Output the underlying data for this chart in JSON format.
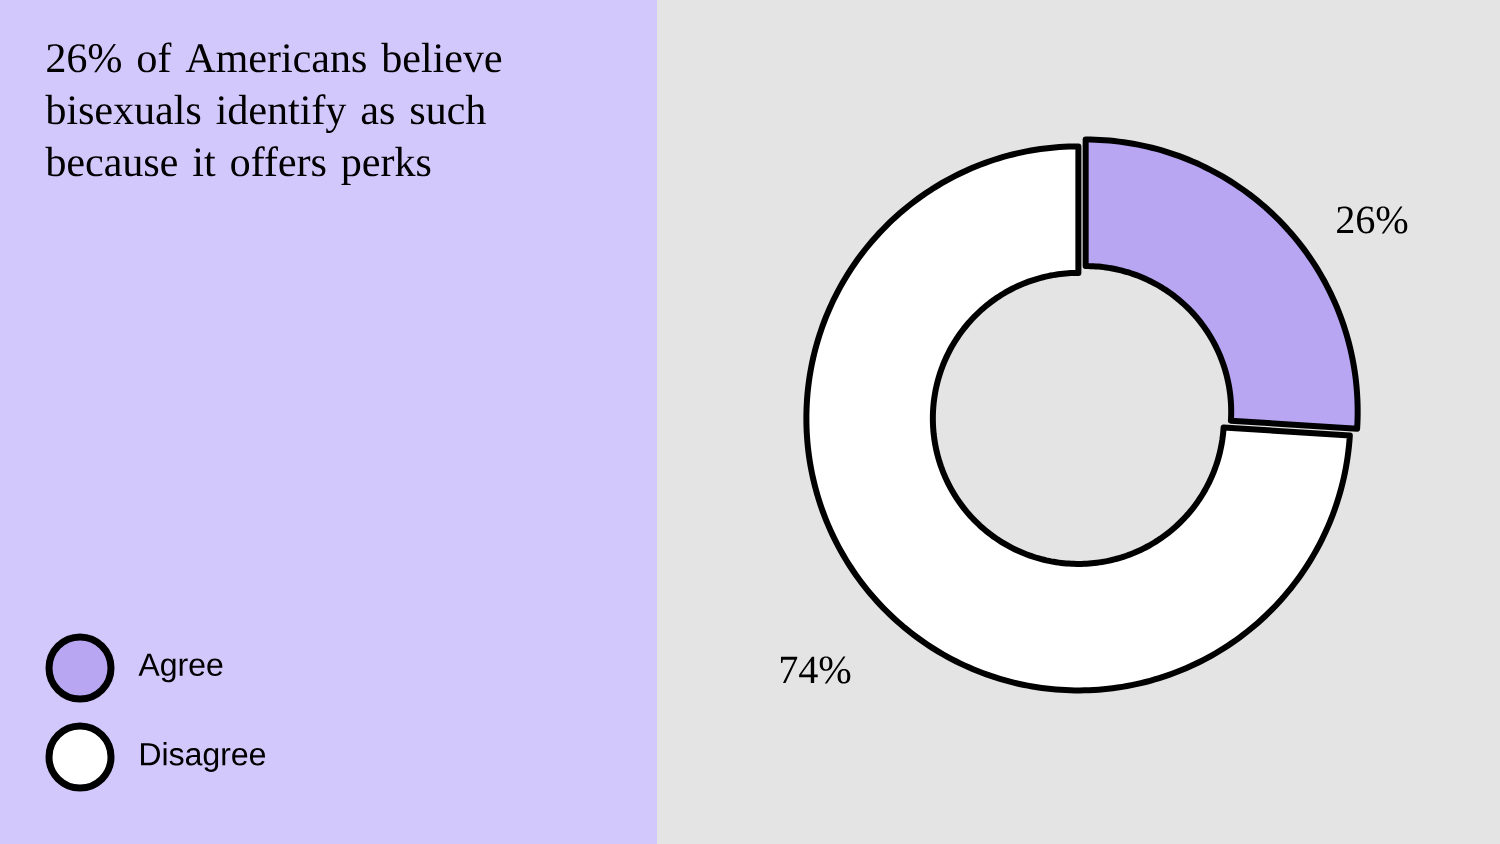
{
  "chart_data": {
    "type": "donut",
    "title": "26% of Americans believe bisexuals identify as such because it offers perks",
    "categories": [
      "Agree",
      "Disagree"
    ],
    "values": [
      26,
      74
    ],
    "colors": [
      "#b8a6f2",
      "#ffffff"
    ],
    "value_labels": [
      "26%",
      "74%"
    ],
    "legend": "bottom left"
  }
}
